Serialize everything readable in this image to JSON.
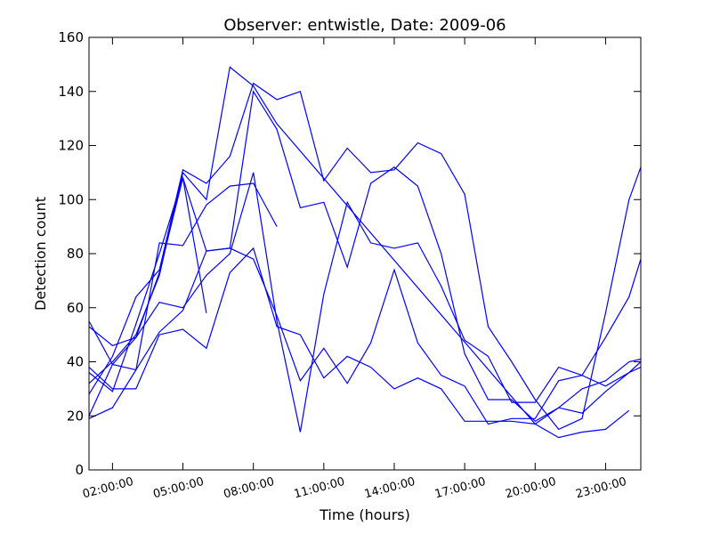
{
  "chart_data": {
    "type": "line",
    "title": "Observer: entwistle, Date: 2009-06",
    "xlabel": "Time (hours)",
    "ylabel": "Detection count",
    "xlim": [
      1,
      24.5
    ],
    "ylim": [
      0,
      160
    ],
    "x_ticks": [
      {
        "value": 2,
        "label": "02:00:00"
      },
      {
        "value": 5,
        "label": "05:00:00"
      },
      {
        "value": 8,
        "label": "08:00:00"
      },
      {
        "value": 11,
        "label": "11:00:00"
      },
      {
        "value": 14,
        "label": "14:00:00"
      },
      {
        "value": 17,
        "label": "17:00:00"
      },
      {
        "value": 20,
        "label": "20:00:00"
      },
      {
        "value": 23,
        "label": "23:00:00"
      }
    ],
    "y_ticks": [
      0,
      20,
      40,
      60,
      80,
      100,
      120,
      140,
      160
    ],
    "line_color": "#0000ff",
    "grid": false,
    "series": [
      {
        "points": [
          [
            1,
            38
          ],
          [
            2,
            30
          ],
          [
            3,
            30
          ],
          [
            4,
            50
          ],
          [
            5,
            52
          ],
          [
            6,
            45
          ],
          [
            7,
            73
          ],
          [
            8,
            82
          ],
          [
            9,
            53
          ],
          [
            10,
            50
          ],
          [
            11,
            34
          ],
          [
            12,
            42
          ],
          [
            13,
            38
          ],
          [
            14,
            30
          ],
          [
            15,
            34
          ],
          [
            16,
            30
          ],
          [
            17,
            18
          ],
          [
            18,
            18
          ],
          [
            19,
            18
          ],
          [
            20,
            17
          ],
          [
            21,
            23
          ],
          [
            22,
            21
          ],
          [
            23,
            29
          ],
          [
            24,
            36
          ],
          [
            24.5,
            38
          ]
        ]
      },
      {
        "points": [
          [
            1,
            55
          ],
          [
            2,
            39
          ],
          [
            3,
            37
          ],
          [
            4,
            51
          ],
          [
            5,
            59
          ],
          [
            6,
            81
          ],
          [
            7,
            82
          ],
          [
            8,
            78
          ],
          [
            9,
            57
          ],
          [
            10,
            33
          ],
          [
            11,
            45
          ],
          [
            12,
            32
          ],
          [
            13,
            47
          ],
          [
            14,
            74
          ],
          [
            15,
            47
          ],
          [
            16,
            35
          ],
          [
            17,
            31
          ],
          [
            18,
            17
          ],
          [
            19,
            19
          ],
          [
            20,
            19
          ],
          [
            21,
            33
          ],
          [
            22,
            35
          ],
          [
            23,
            31
          ],
          [
            24,
            36
          ],
          [
            24.5,
            40
          ]
        ]
      },
      {
        "points": [
          [
            1,
            19
          ],
          [
            2,
            23
          ],
          [
            3,
            37
          ],
          [
            4,
            84
          ],
          [
            5,
            83
          ],
          [
            6,
            98
          ],
          [
            7,
            105
          ],
          [
            8,
            106
          ],
          [
            9,
            90
          ]
        ]
      },
      {
        "points": [
          [
            1,
            20
          ],
          [
            2,
            39
          ],
          [
            3,
            49
          ],
          [
            4,
            62
          ],
          [
            5,
            60
          ],
          [
            6,
            72
          ],
          [
            7,
            80
          ],
          [
            8,
            110
          ],
          [
            9,
            55
          ],
          [
            10,
            14
          ],
          [
            11,
            65
          ],
          [
            12,
            99
          ],
          [
            13,
            84
          ],
          [
            14,
            82
          ],
          [
            15,
            84
          ],
          [
            16,
            68
          ],
          [
            17,
            48
          ],
          [
            18,
            42
          ],
          [
            19,
            25
          ],
          [
            20,
            25
          ],
          [
            21,
            38
          ],
          [
            22,
            35
          ],
          [
            23,
            49
          ],
          [
            24,
            64
          ],
          [
            24.5,
            78
          ]
        ]
      },
      {
        "points": [
          [
            1,
            53
          ],
          [
            2,
            46
          ],
          [
            3,
            49
          ],
          [
            4,
            73
          ],
          [
            5,
            108
          ],
          [
            6,
            81
          ],
          [
            7,
            82
          ],
          [
            8,
            140
          ],
          [
            9,
            126
          ],
          [
            10,
            97
          ],
          [
            11,
            99
          ],
          [
            12,
            75
          ],
          [
            13,
            106
          ],
          [
            14,
            112
          ],
          [
            15,
            105
          ],
          [
            16,
            80
          ],
          [
            17,
            43
          ],
          [
            18,
            26
          ],
          [
            19,
            26
          ],
          [
            20,
            18
          ],
          [
            21,
            23
          ],
          [
            22,
            30
          ],
          [
            23,
            33
          ],
          [
            24,
            40
          ],
          [
            24.5,
            41
          ]
        ]
      },
      {
        "points": [
          [
            1,
            28
          ],
          [
            2,
            42
          ],
          [
            3,
            64
          ],
          [
            4,
            74
          ],
          [
            5,
            111
          ],
          [
            6,
            106
          ],
          [
            7,
            116
          ],
          [
            8,
            143
          ],
          [
            9,
            137
          ],
          [
            10,
            140
          ],
          [
            11,
            107
          ],
          [
            12,
            119
          ],
          [
            13,
            110
          ],
          [
            14,
            111
          ],
          [
            15,
            121
          ],
          [
            16,
            117
          ],
          [
            17,
            102
          ],
          [
            18,
            53
          ],
          [
            19,
            40
          ],
          [
            20,
            26
          ],
          [
            21,
            15
          ],
          [
            22,
            19
          ],
          [
            23,
            58
          ],
          [
            24,
            100
          ],
          [
            24.5,
            112
          ]
        ]
      },
      {
        "points": [
          [
            1,
            36
          ],
          [
            2,
            29
          ],
          [
            3,
            54
          ],
          [
            4,
            80
          ],
          [
            5,
            108
          ],
          [
            6,
            58
          ]
        ]
      },
      {
        "points": [
          [
            1,
            32
          ],
          [
            2,
            40
          ],
          [
            3,
            50
          ],
          [
            4,
            72
          ],
          [
            5,
            110
          ],
          [
            6,
            100
          ],
          [
            7,
            149
          ],
          [
            8,
            142
          ],
          [
            9,
            128
          ],
          [
            20,
            17
          ],
          [
            21,
            12
          ],
          [
            22,
            14
          ],
          [
            23,
            15
          ],
          [
            24,
            22
          ]
        ]
      }
    ]
  }
}
